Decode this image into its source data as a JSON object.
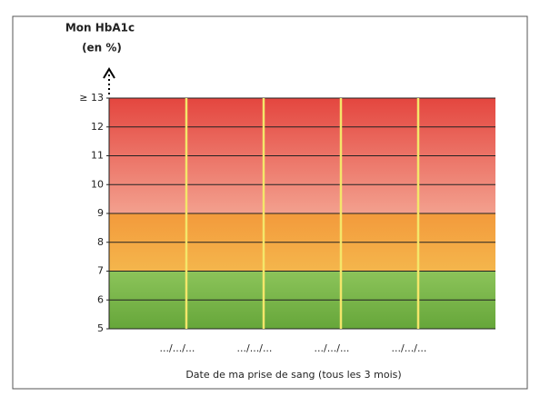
{
  "chart_data": {
    "type": "band",
    "title": "Mon  HbA1c",
    "subtitle": "(en %)",
    "x_label": "Date de ma prise de sang (tous les 3 mois)",
    "categories": [
      ".../.../...",
      ".../.../...",
      ".../.../...",
      ".../.../..."
    ],
    "bands": [
      {
        "from": 5,
        "to": 7,
        "colors": [
          "#8cc45a",
          "#66a63a"
        ]
      },
      {
        "from": 7,
        "to": 9,
        "colors": [
          "#f39a3c",
          "#f4b64c"
        ]
      },
      {
        "from": 9,
        "to": 13,
        "colors": [
          "#e4463f",
          "#f3a08e"
        ]
      }
    ],
    "ylim": [
      5,
      13
    ],
    "yticks": [
      5,
      6,
      7,
      8,
      9,
      10,
      11,
      12,
      {
        "value": 13,
        "label": "≥ 13"
      }
    ],
    "grid": true,
    "divider_color": "#f4e66a"
  }
}
